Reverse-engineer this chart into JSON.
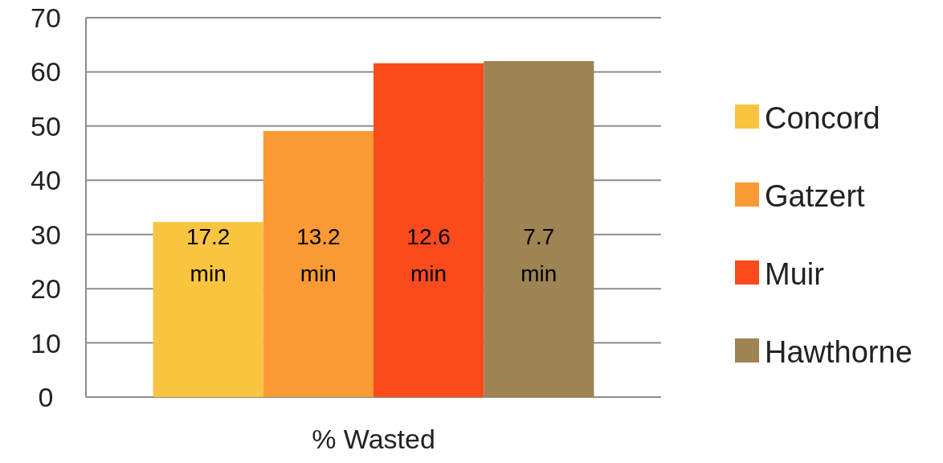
{
  "chart_data": {
    "type": "bar",
    "categories": [
      "% Wasted"
    ],
    "series": [
      {
        "name": "Concord",
        "color": "#f9c440",
        "values": [
          32.3
        ]
      },
      {
        "name": "Gatzert",
        "color": "#fb9a35",
        "values": [
          49.1
        ]
      },
      {
        "name": "Muir",
        "color": "#fb4b1d",
        "values": [
          61.6
        ]
      },
      {
        "name": "Hawthorne",
        "color": "#9e8453",
        "values": [
          62.0
        ]
      }
    ],
    "annotations": [
      "17.2 min",
      "13.2 min",
      "12.6 min",
      "7.7 min"
    ],
    "ylim": [
      0,
      70
    ],
    "yticks": [
      0,
      10,
      20,
      30,
      40,
      50,
      60,
      70
    ],
    "grid": "y",
    "legend": "right"
  }
}
